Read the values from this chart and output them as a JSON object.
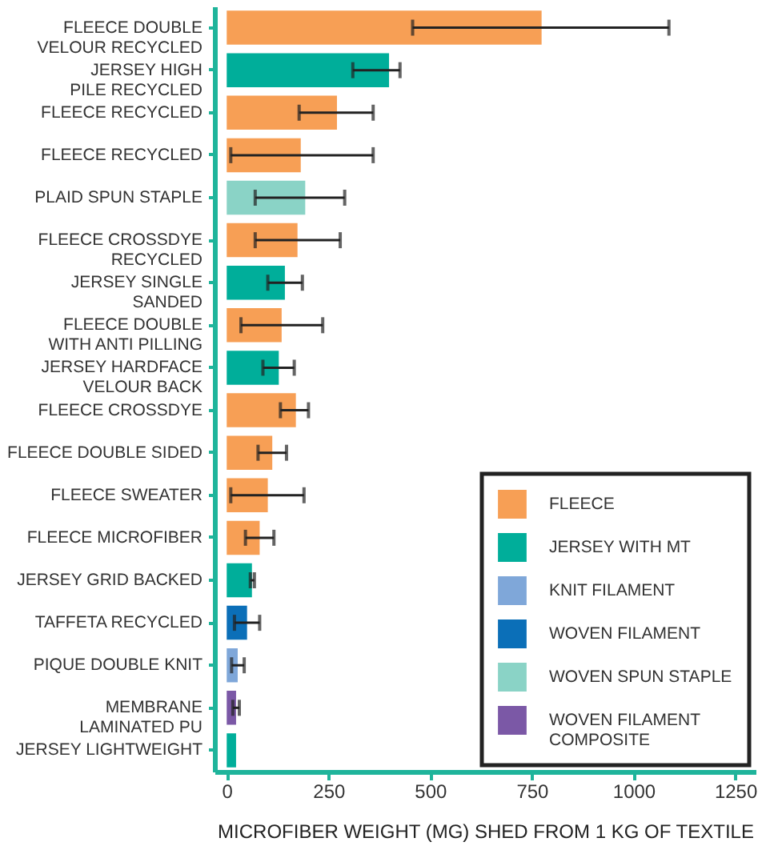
{
  "chart_data": {
    "type": "bar",
    "orientation": "horizontal",
    "xlabel": "MICROFIBER WEIGHT (MG) SHED FROM 1 KG OF TEXTILE",
    "xlim": [
      -30,
      1300
    ],
    "xticks": [
      0,
      250,
      500,
      750,
      1000,
      1250
    ],
    "grid": false,
    "legend": "bottom right",
    "categories": [
      "FLEECE DOUBLE VELOUR RECYCLED",
      "JERSEY HIGH PILE RECYCLED",
      "FLEECE RECYCLED",
      "FLEECE RECYCLED",
      "PLAID SPUN STAPLE",
      "FLEECE CROSSDYE RECYCLED",
      "JERSEY SINGLE SANDED",
      "FLEECE DOUBLE WITH ANTI PILLING",
      "JERSEY HARDFACE VELOUR BACK",
      "FLEECE CROSSDYE",
      "FLEECE DOUBLE SIDED",
      "FLEECE SWEATER",
      "FLEECE MICROFIBER",
      "JERSEY GRID BACKED",
      "TAFFETA RECYCLED",
      "PIQUE DOUBLE KNIT",
      "MEMBRANE LAMINATED PU",
      "JERSEY LIGHTWEIGHT"
    ],
    "series": [
      {
        "name": "FLEECE",
        "color": "#f79f55",
        "values": [
          774,
          null,
          271,
          182,
          null,
          174,
          null,
          135,
          null,
          170,
          112,
          101,
          81,
          null,
          null,
          null,
          null,
          null
        ],
        "errors": [
          [
            457,
            1087
          ],
          null,
          [
            178,
            360
          ],
          [
            10,
            360
          ],
          null,
          [
            70,
            279
          ],
          null,
          [
            35,
            236
          ],
          null,
          [
            132,
            201
          ],
          [
            77,
            147
          ],
          [
            10,
            190
          ],
          [
            46,
            116
          ],
          null,
          null,
          null,
          null,
          null
        ]
      },
      {
        "name": "JERSEY WITH MT",
        "color": "#00ae9a",
        "values": [
          null,
          399,
          null,
          null,
          null,
          null,
          143,
          null,
          128,
          null,
          null,
          null,
          null,
          62,
          null,
          null,
          null,
          23
        ],
        "errors": [
          null,
          [
            310,
            426
          ],
          null,
          null,
          null,
          null,
          [
            101,
            186
          ],
          null,
          [
            89,
            166
          ],
          null,
          null,
          null,
          null,
          [
            58,
            68
          ],
          null,
          null,
          null,
          null
        ]
      },
      {
        "name": "KNIT FILAMENT",
        "color": "#7fa7d9",
        "values": [
          null,
          null,
          null,
          null,
          null,
          null,
          null,
          null,
          null,
          null,
          null,
          null,
          null,
          null,
          null,
          27,
          null,
          null
        ],
        "errors": [
          null,
          null,
          null,
          null,
          null,
          null,
          null,
          null,
          null,
          null,
          null,
          null,
          null,
          null,
          null,
          [
            12,
            43
          ],
          null,
          null
        ]
      },
      {
        "name": "WOVEN FILAMENT",
        "color": "#0b6fb8",
        "values": [
          null,
          null,
          null,
          null,
          null,
          null,
          null,
          null,
          null,
          null,
          null,
          null,
          null,
          null,
          50,
          null,
          null,
          null
        ],
        "errors": [
          null,
          null,
          null,
          null,
          null,
          null,
          null,
          null,
          null,
          null,
          null,
          null,
          null,
          null,
          [
            19,
            81
          ],
          null,
          null,
          null
        ]
      },
      {
        "name": "WOVEN SPUN STAPLE",
        "color": "#8ad3c6",
        "values": [
          null,
          null,
          null,
          null,
          193,
          null,
          null,
          null,
          null,
          null,
          null,
          null,
          null,
          null,
          null,
          null,
          null,
          null
        ],
        "errors": [
          null,
          null,
          null,
          null,
          [
            70,
            290
          ],
          null,
          null,
          null,
          null,
          null,
          null,
          null,
          null,
          null,
          null,
          null,
          null,
          null
        ]
      },
      {
        "name": "WOVEN FILAMENT COMPOSITE",
        "color": "#7b58a6",
        "values": [
          null,
          null,
          null,
          null,
          null,
          null,
          null,
          null,
          null,
          null,
          null,
          null,
          null,
          null,
          null,
          null,
          23,
          null
        ],
        "errors": [
          null,
          null,
          null,
          null,
          null,
          null,
          null,
          null,
          null,
          null,
          null,
          null,
          null,
          null,
          null,
          null,
          [
            15,
            31
          ],
          null
        ]
      }
    ]
  }
}
